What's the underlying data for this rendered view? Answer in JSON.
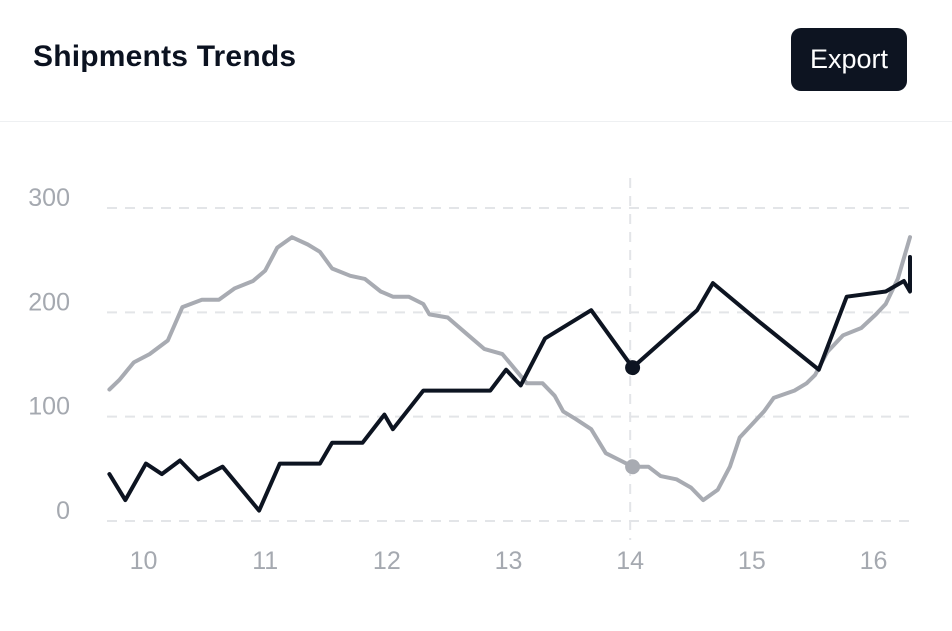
{
  "header": {
    "title": "Shipments Trends",
    "export_label": "Export"
  },
  "colors": {
    "primary_series": "#0d1421",
    "secondary_series": "#a8abb2",
    "grid": "#e3e5e8",
    "tick_text": "#a5a9b0"
  },
  "chart_data": {
    "type": "line",
    "title": "",
    "xlabel": "",
    "ylabel": "",
    "xlim": [
      9.7,
      16.3
    ],
    "ylim": [
      0,
      300
    ],
    "x_ticks": [
      10,
      11,
      12,
      13,
      14,
      15,
      16
    ],
    "y_ticks": [
      0,
      100,
      200,
      300
    ],
    "grid": "horizontal-dashed",
    "crosshair_x": 14,
    "series": [
      {
        "color": "#0d1421",
        "points": [
          [
            9.72,
            45
          ],
          [
            9.85,
            20
          ],
          [
            10.02,
            55
          ],
          [
            10.15,
            45
          ],
          [
            10.3,
            58
          ],
          [
            10.45,
            40
          ],
          [
            10.65,
            52
          ],
          [
            10.95,
            10
          ],
          [
            11.12,
            55
          ],
          [
            11.45,
            55
          ],
          [
            11.55,
            75
          ],
          [
            11.8,
            75
          ],
          [
            11.98,
            102
          ],
          [
            12.05,
            88
          ],
          [
            12.3,
            125
          ],
          [
            12.85,
            125
          ],
          [
            12.98,
            145
          ],
          [
            13.1,
            130
          ],
          [
            13.3,
            175
          ],
          [
            13.68,
            202
          ],
          [
            14.02,
            147
          ],
          [
            14.55,
            202
          ],
          [
            14.68,
            228
          ],
          [
            15.05,
            192
          ],
          [
            15.55,
            145
          ],
          [
            15.78,
            215
          ],
          [
            16.1,
            220
          ],
          [
            16.25,
            230
          ],
          [
            16.3,
            220
          ],
          [
            16.3,
            253
          ]
        ],
        "highlight": [
          14.02,
          147
        ]
      },
      {
        "color": "#a8abb2",
        "points": [
          [
            9.72,
            126
          ],
          [
            9.8,
            135
          ],
          [
            9.92,
            152
          ],
          [
            10.05,
            160
          ],
          [
            10.2,
            173
          ],
          [
            10.32,
            205
          ],
          [
            10.48,
            212
          ],
          [
            10.62,
            212
          ],
          [
            10.75,
            223
          ],
          [
            10.9,
            230
          ],
          [
            11.0,
            240
          ],
          [
            11.1,
            262
          ],
          [
            11.22,
            272
          ],
          [
            11.35,
            265
          ],
          [
            11.45,
            258
          ],
          [
            11.55,
            242
          ],
          [
            11.7,
            235
          ],
          [
            11.82,
            232
          ],
          [
            11.95,
            220
          ],
          [
            12.05,
            215
          ],
          [
            12.18,
            215
          ],
          [
            12.3,
            208
          ],
          [
            12.35,
            198
          ],
          [
            12.5,
            195
          ],
          [
            12.65,
            180
          ],
          [
            12.8,
            165
          ],
          [
            12.95,
            160
          ],
          [
            13.05,
            146
          ],
          [
            13.15,
            132
          ],
          [
            13.28,
            132
          ],
          [
            13.38,
            120
          ],
          [
            13.45,
            105
          ],
          [
            13.55,
            98
          ],
          [
            13.68,
            88
          ],
          [
            13.8,
            65
          ],
          [
            13.92,
            58
          ],
          [
            14.02,
            52
          ],
          [
            14.15,
            52
          ],
          [
            14.25,
            43
          ],
          [
            14.38,
            40
          ],
          [
            14.5,
            32
          ],
          [
            14.6,
            20
          ],
          [
            14.72,
            30
          ],
          [
            14.82,
            52
          ],
          [
            14.9,
            80
          ],
          [
            15.02,
            95
          ],
          [
            15.1,
            105
          ],
          [
            15.18,
            118
          ],
          [
            15.35,
            125
          ],
          [
            15.45,
            132
          ],
          [
            15.52,
            140
          ],
          [
            15.62,
            162
          ],
          [
            15.75,
            178
          ],
          [
            15.9,
            185
          ],
          [
            16.02,
            198
          ],
          [
            16.1,
            208
          ],
          [
            16.2,
            232
          ],
          [
            16.3,
            272
          ]
        ],
        "highlight": [
          14.02,
          52
        ]
      }
    ]
  }
}
